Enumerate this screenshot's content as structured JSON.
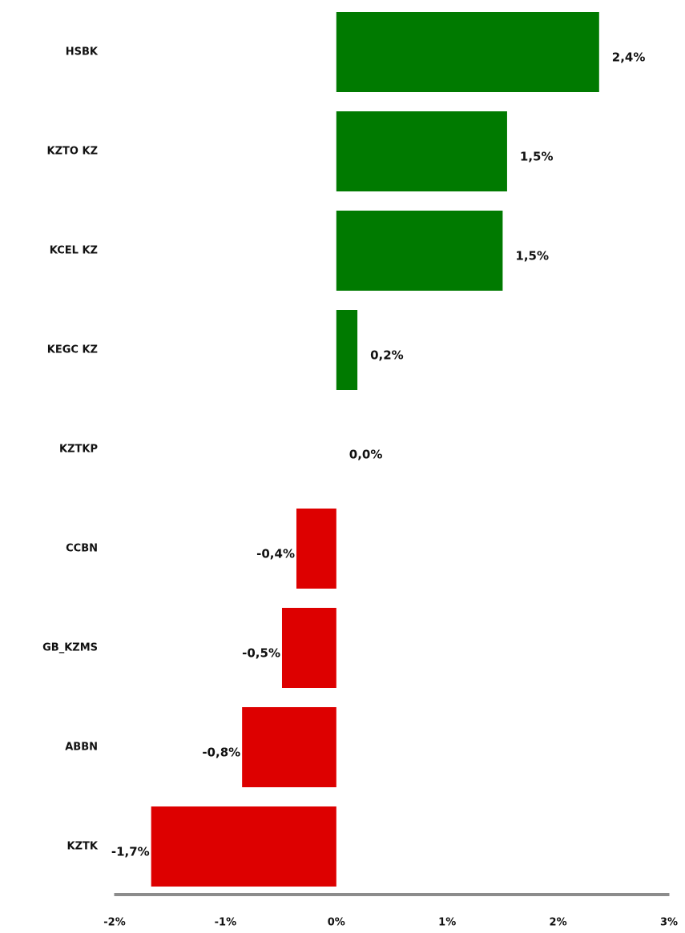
{
  "chart_data": {
    "type": "hbar",
    "categories": [
      "HSBK",
      "KZTO KZ",
      "KCEL KZ",
      "KEGC KZ",
      "KZTKP",
      "CCBN",
      "GB_KZMS",
      "ABBN",
      "KZTK"
    ],
    "values": [
      2.37,
      1.54,
      1.5,
      0.19,
      0,
      -0.36,
      -0.49,
      -0.85,
      -1.67
    ],
    "value_labels": [
      "2,4%",
      "1,5%",
      "1,5%",
      "0,2%",
      "0,0%",
      "-0,4%",
      "-0,5%",
      "-0,8%",
      "-1,7%"
    ],
    "color_positive": "#007a00",
    "color_negative": "#dd0000",
    "xlim": [
      -2,
      3
    ],
    "xticks": [
      {
        "value": -2,
        "label": "-2%"
      },
      {
        "value": -1,
        "label": "-1%"
      },
      {
        "value": 0,
        "label": "0%"
      },
      {
        "value": 1,
        "label": "1%"
      },
      {
        "value": 2,
        "label": "2%"
      },
      {
        "value": 3,
        "label": "3%"
      }
    ]
  }
}
